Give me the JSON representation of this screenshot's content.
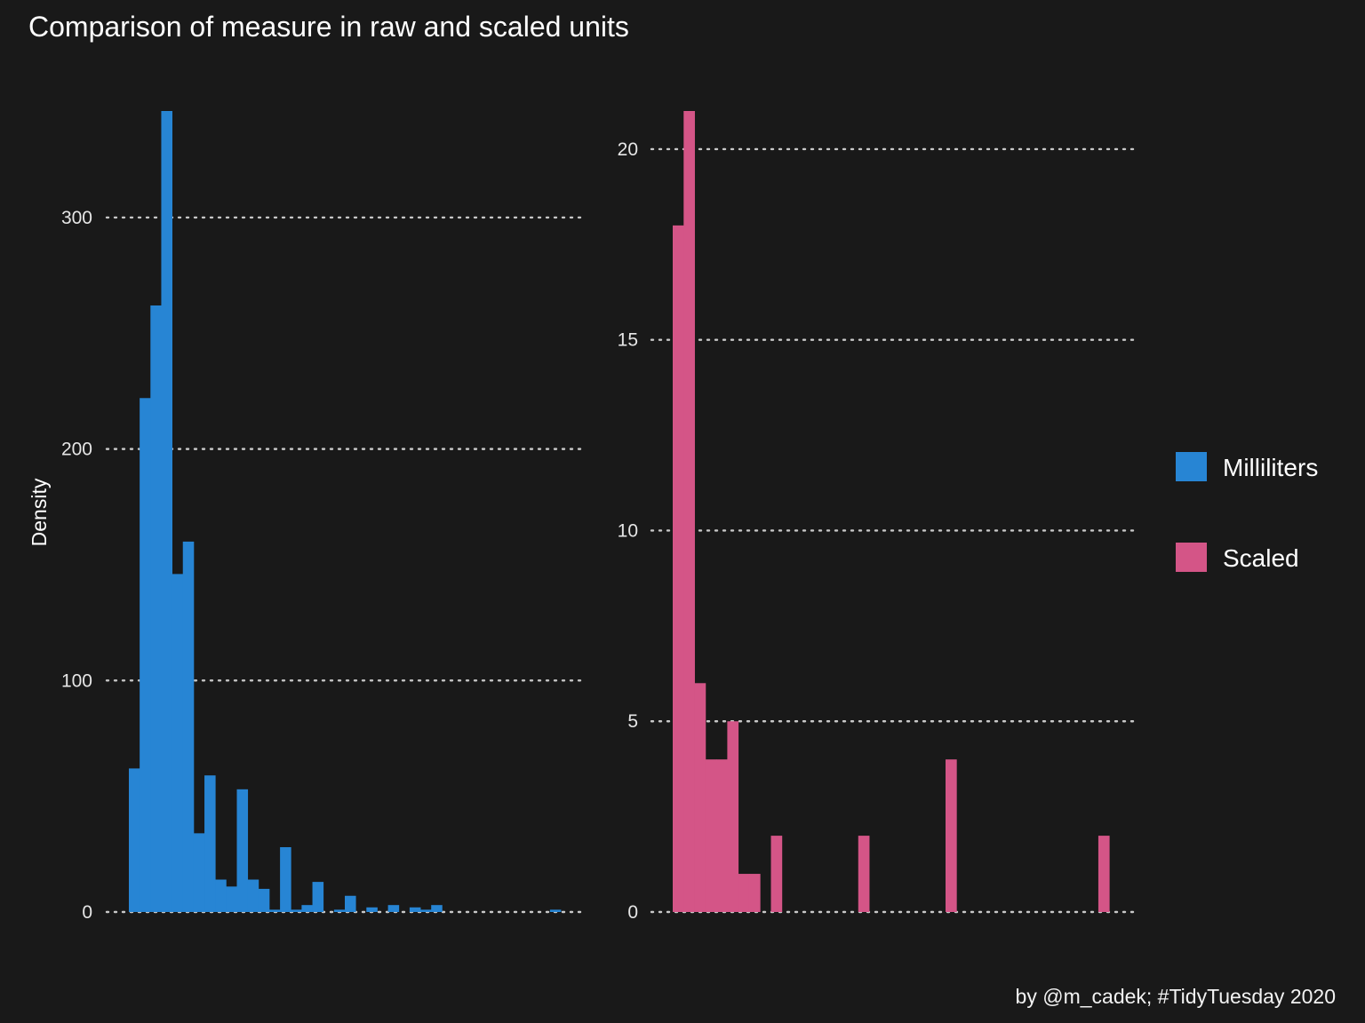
{
  "title": "Comparison of measure in raw and scaled units",
  "caption": "by @m_cadek; #TidyTuesday 2020",
  "ylabel": "Density",
  "legend": {
    "position": "right",
    "items": [
      {
        "label": "Milliliters",
        "color": "#2785D4"
      },
      {
        "label": "Scaled",
        "color": "#D45587"
      }
    ]
  },
  "chart_data": [
    {
      "type": "bar",
      "panel": "left",
      "series_name": "Milliliters",
      "color": "#2785D4",
      "grid": "horizontal dotted",
      "xlabel": "",
      "ylabel": "Density",
      "ylim": [
        0,
        346
      ],
      "yticks": [
        0,
        100,
        200,
        300
      ],
      "bin_count": 40,
      "values": [
        62,
        222,
        262,
        346,
        146,
        160,
        34,
        59,
        14,
        11,
        53,
        14,
        10,
        1,
        28,
        1,
        3,
        13,
        0,
        1,
        7,
        0,
        2,
        0,
        3,
        0,
        2,
        1,
        3,
        0,
        0,
        0,
        0,
        0,
        0,
        0,
        0,
        0,
        0,
        1
      ]
    },
    {
      "type": "bar",
      "panel": "right",
      "series_name": "Scaled",
      "color": "#D45587",
      "grid": "horizontal dotted",
      "xlabel": "",
      "ylabel": "",
      "ylim": [
        0,
        21
      ],
      "yticks": [
        0,
        5,
        10,
        15,
        20
      ],
      "bin_count": 40,
      "values": [
        18,
        21,
        6,
        4,
        4,
        5,
        1,
        1,
        0,
        2,
        0,
        0,
        0,
        0,
        0,
        0,
        0,
        2,
        0,
        0,
        0,
        0,
        0,
        0,
        0,
        4,
        0,
        0,
        0,
        0,
        0,
        0,
        0,
        0,
        0,
        0,
        0,
        0,
        0,
        2
      ]
    }
  ]
}
